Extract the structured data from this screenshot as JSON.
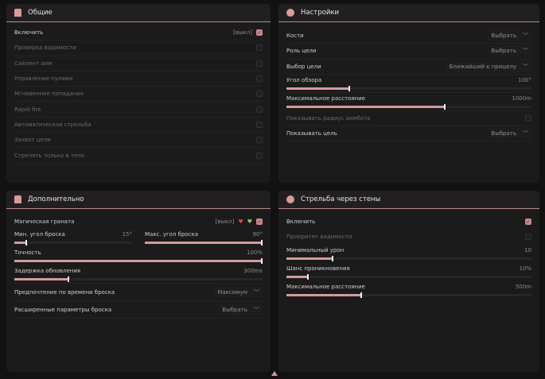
{
  "accent": "#d49a9c",
  "general": {
    "title": "Общие",
    "icon": "person-icon",
    "items": [
      {
        "label": "Включить",
        "state": "[выкл]",
        "checked": true,
        "disabled": false
      },
      {
        "label": "Проверка видимости",
        "checked": false,
        "disabled": true
      },
      {
        "label": "Сайлент аим",
        "checked": false,
        "disabled": true
      },
      {
        "label": "Управление пулями",
        "checked": false,
        "disabled": true
      },
      {
        "label": "Мгновенное попадание",
        "checked": false,
        "disabled": true
      },
      {
        "label": "Rapid fire",
        "checked": false,
        "disabled": true
      },
      {
        "label": "Автоматическая стрельба",
        "checked": false,
        "disabled": true
      },
      {
        "label": "Захват цели",
        "checked": false,
        "disabled": true
      },
      {
        "label": "Стрелять только в тело",
        "checked": false,
        "disabled": true
      }
    ]
  },
  "settings": {
    "title": "Настройки",
    "icon": "gear-icon",
    "bones": {
      "label": "Кости",
      "value": "Выбрать"
    },
    "role": {
      "label": "Роль цели",
      "value": "Выбрать"
    },
    "target": {
      "label": "Выбор цели",
      "value": "Ближайший к прицелу"
    },
    "fov": {
      "label": "Угол обзора",
      "value": "100°",
      "fraction": 0.26
    },
    "maxdist": {
      "label": "Максимальное расстояние",
      "value": "1000m",
      "fraction": 0.65
    },
    "radius": {
      "label": "Показывать радиус аимбота",
      "checked": false
    },
    "show": {
      "label": "Показывать цель",
      "value": "Выбрать"
    }
  },
  "extra": {
    "title": "Дополнительно",
    "icon": "person-icon",
    "grenade": {
      "label": "Магическая граната",
      "state": "[выкл]",
      "checked": true
    },
    "minang": {
      "label": "Мин. угол броска",
      "value": "15°",
      "fraction": 0.11
    },
    "maxang": {
      "label": "Макс. угол броска",
      "value": "90°",
      "fraction": 1.0
    },
    "acc": {
      "label": "Точность",
      "value": "100%",
      "fraction": 1.0
    },
    "delay": {
      "label": "Задержка обновления",
      "value": "300ms",
      "fraction": 0.22
    },
    "pref": {
      "label": "Предпочтение по времени броска",
      "value": "Максимум"
    },
    "adv": {
      "label": "Расширенные параметры броска",
      "value": "Выбрать"
    }
  },
  "wall": {
    "title": "Стрельба через стены",
    "icon": "gear-icon",
    "enable": {
      "label": "Включить",
      "checked": true
    },
    "prio": {
      "label": "Приоритет видимости",
      "checked": false
    },
    "mindmg": {
      "label": "Минимальный урон",
      "value": "10",
      "fraction": 0.19
    },
    "pen": {
      "label": "Шанс проникновения",
      "value": "10%",
      "fraction": 0.09
    },
    "dist": {
      "label": "Максимальное расстояние",
      "value": "500m",
      "fraction": 0.31
    }
  }
}
